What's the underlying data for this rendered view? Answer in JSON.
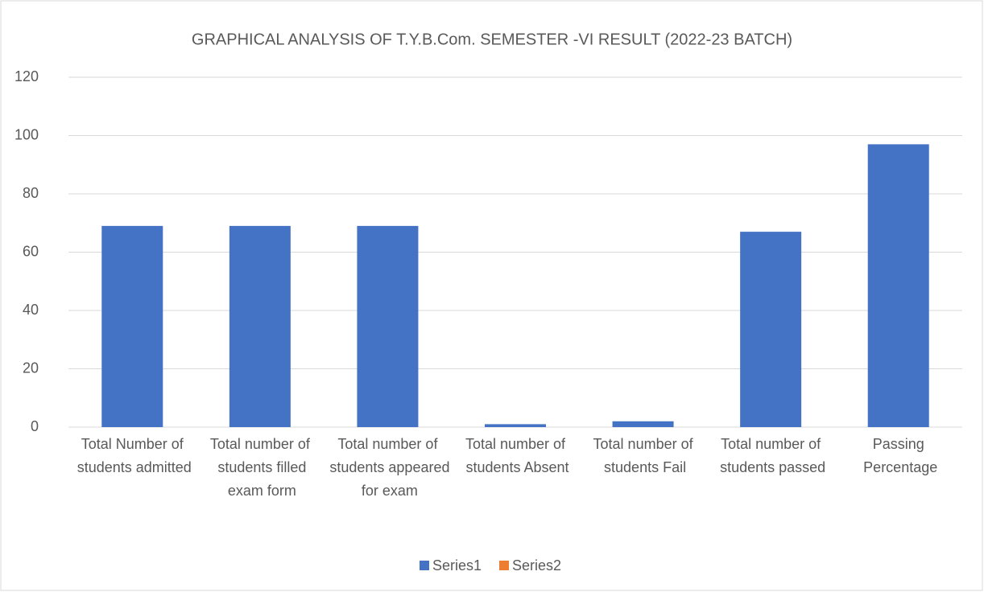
{
  "chart_data": {
    "type": "bar",
    "title": "GRAPHICAL ANALYSIS OF T.Y.B.Com. SEMESTER -VI RESULT (2022-23 BATCH)",
    "categories": [
      "Total Number of students admitted",
      "Total number of students filled exam form",
      "Total number of students appeared for exam",
      "Total number of students Absent",
      "Total number of students Fail",
      "Total number of students passed",
      "Passing Percentage"
    ],
    "series": [
      {
        "name": "Series1",
        "color": "#4472c4",
        "values": [
          69,
          69,
          69,
          1,
          2,
          67,
          97
        ]
      },
      {
        "name": "Series2",
        "color": "#ed7d31",
        "values": [
          null,
          null,
          null,
          null,
          null,
          null,
          null
        ]
      }
    ],
    "ylim": [
      0,
      120
    ],
    "yticks": [
      0,
      20,
      40,
      60,
      80,
      100,
      120
    ],
    "grid": true,
    "legend": "bottom"
  }
}
